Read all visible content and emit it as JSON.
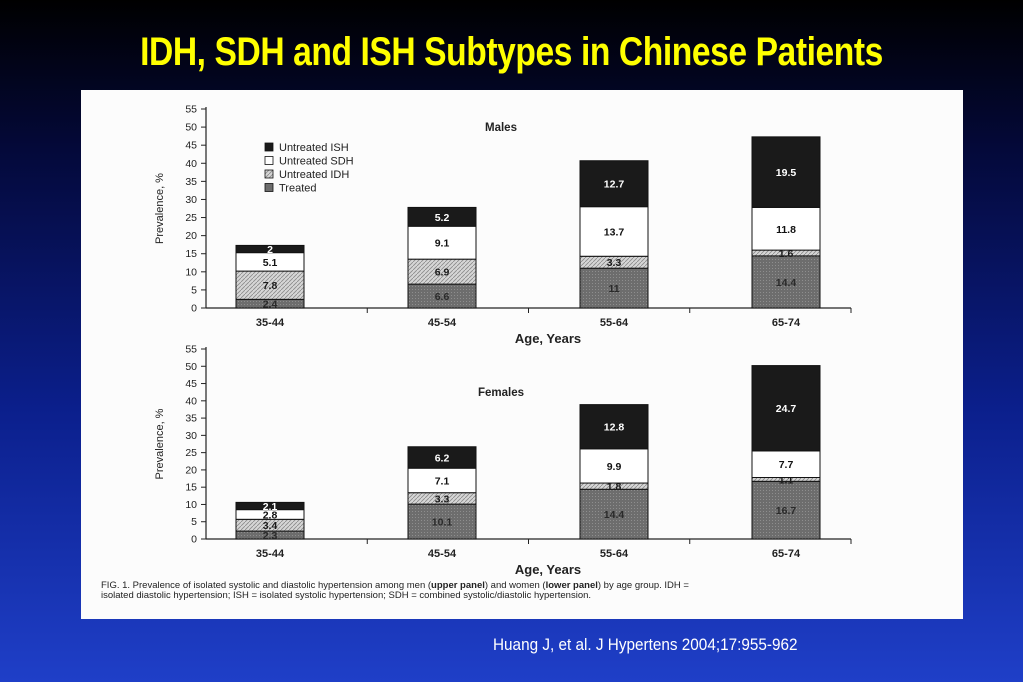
{
  "slide": {
    "title": "IDH, SDH and ISH Subtypes in Chinese Patients",
    "citation": "Huang J, et al. J Hypertens 2004;17:955-962"
  },
  "figure": {
    "caption_line1_a": "FIG. 1.  Prevalence of isolated systolic and diastolic hypertension among men (",
    "caption_line1_b": "upper panel",
    "caption_line1_c": ") and women (",
    "caption_line1_d": "lower panel",
    "caption_line1_e": ") by age group. IDH =",
    "caption_line2": "isolated diastolic hypertension; ISH = isolated systolic hypertension; SDH = combined systolic/diastolic hypertension."
  },
  "colors": {
    "treated": "#707070",
    "untreated_idh": "#cfcfcf",
    "untreated_sdh": "#ffffff",
    "untreated_ish": "#1a1a1a"
  },
  "chart_data": [
    {
      "type": "bar",
      "stacked": true,
      "title": "Males",
      "xlabel": "Age, Years",
      "ylabel": "Prevalence, %",
      "ylim": [
        0,
        55
      ],
      "yticks": [
        0,
        5,
        10,
        15,
        20,
        25,
        30,
        35,
        40,
        45,
        50,
        55
      ],
      "categories": [
        "35-44",
        "45-54",
        "55-64",
        "65-74"
      ],
      "legend": [
        "Untreated ISH",
        "Untreated SDH",
        "Untreated IDH",
        "Treated"
      ],
      "series": [
        {
          "name": "Treated",
          "values": [
            2.4,
            6.6,
            11,
            14.4
          ]
        },
        {
          "name": "Untreated IDH",
          "values": [
            7.8,
            6.9,
            3.3,
            1.6
          ]
        },
        {
          "name": "Untreated SDH",
          "values": [
            5.1,
            9.1,
            13.7,
            11.8
          ]
        },
        {
          "name": "Untreated ISH",
          "values": [
            2,
            5.2,
            12.7,
            19.5
          ]
        }
      ]
    },
    {
      "type": "bar",
      "stacked": true,
      "title": "Females",
      "xlabel": "Age, Years",
      "ylabel": "Prevalence, %",
      "ylim": [
        0,
        55
      ],
      "yticks": [
        0,
        5,
        10,
        15,
        20,
        25,
        30,
        35,
        40,
        45,
        50,
        55
      ],
      "categories": [
        "35-44",
        "45-54",
        "55-64",
        "65-74"
      ],
      "series": [
        {
          "name": "Treated",
          "values": [
            2.3,
            10.1,
            14.4,
            16.7
          ]
        },
        {
          "name": "Untreated IDH",
          "values": [
            3.4,
            3.3,
            1.8,
            1.1
          ]
        },
        {
          "name": "Untreated SDH",
          "values": [
            2.8,
            7.1,
            9.9,
            7.7
          ]
        },
        {
          "name": "Untreated ISH",
          "values": [
            2.1,
            6.2,
            12.8,
            24.7
          ]
        }
      ]
    }
  ]
}
